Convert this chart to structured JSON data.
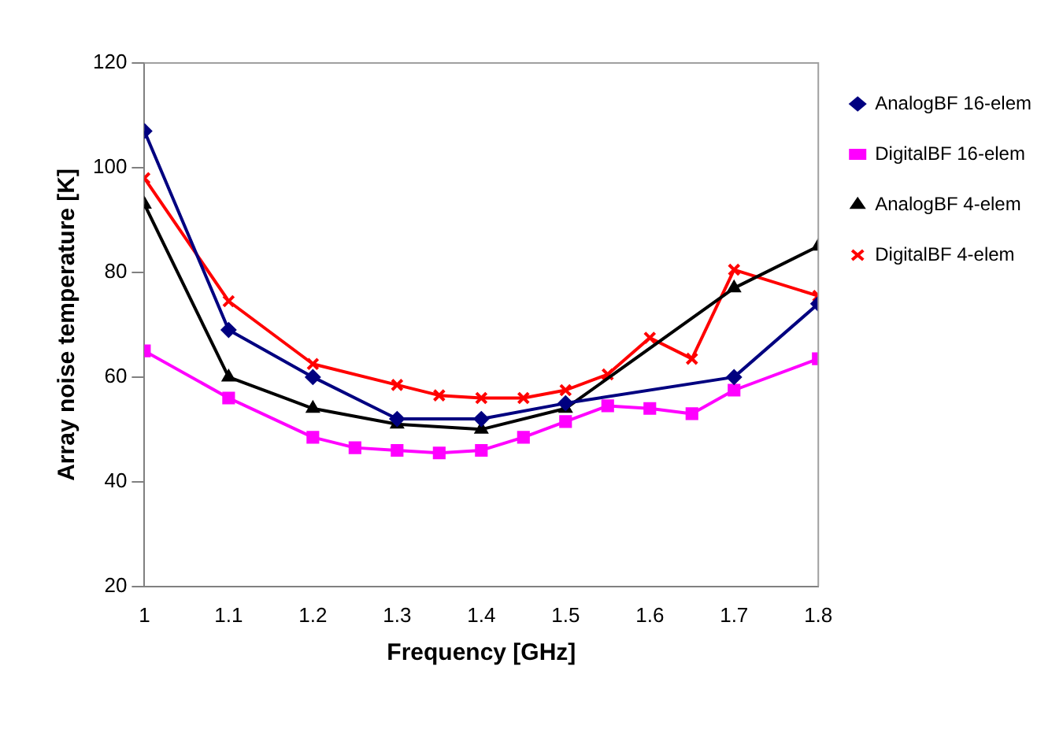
{
  "chart_data": {
    "type": "line",
    "xlabel": "Frequency [GHz]",
    "ylabel": "Array noise temperature [K]",
    "xlim": [
      1,
      1.8
    ],
    "xticks": [
      1,
      1.1,
      1.2,
      1.3,
      1.4,
      1.5,
      1.6,
      1.7,
      1.8
    ],
    "ylim": [
      20,
      120
    ],
    "yticks": [
      20,
      40,
      60,
      80,
      100,
      120
    ],
    "grid": false,
    "legend": "top right",
    "series": [
      {
        "name": "AnalogBF 16-elem",
        "color": "#000080",
        "marker": "diamond",
        "x": [
          1,
          1.1,
          1.2,
          1.3,
          1.4,
          1.5,
          1.7,
          1.8
        ],
        "values": [
          107,
          69,
          60,
          52,
          52,
          55,
          60,
          74
        ]
      },
      {
        "name": "DigitalBF 16-elem",
        "color": "#ff00ff",
        "marker": "square",
        "x": [
          1,
          1.1,
          1.2,
          1.25,
          1.3,
          1.35,
          1.4,
          1.45,
          1.5,
          1.55,
          1.6,
          1.65,
          1.7,
          1.8
        ],
        "values": [
          65,
          56,
          48.5,
          46.5,
          46,
          45.5,
          46,
          48.5,
          51.5,
          54.5,
          54,
          53,
          57.5,
          63.5
        ]
      },
      {
        "name": "AnalogBF 4-elem",
        "color": "#000000",
        "marker": "triangle",
        "x": [
          1,
          1.1,
          1.2,
          1.3,
          1.4,
          1.5,
          1.7,
          1.8
        ],
        "values": [
          93,
          60,
          54,
          51,
          50,
          54,
          77,
          85
        ]
      },
      {
        "name": "DigitalBF 4-elem",
        "color": "#ff0000",
        "marker": "cross",
        "x": [
          1,
          1.1,
          1.2,
          1.3,
          1.35,
          1.4,
          1.45,
          1.5,
          1.55,
          1.6,
          1.65,
          1.7,
          1.8
        ],
        "values": [
          98,
          74.5,
          62.5,
          58.5,
          56.5,
          56,
          56,
          57.5,
          60.5,
          67.5,
          63.5,
          80.5,
          75.5
        ]
      }
    ]
  }
}
